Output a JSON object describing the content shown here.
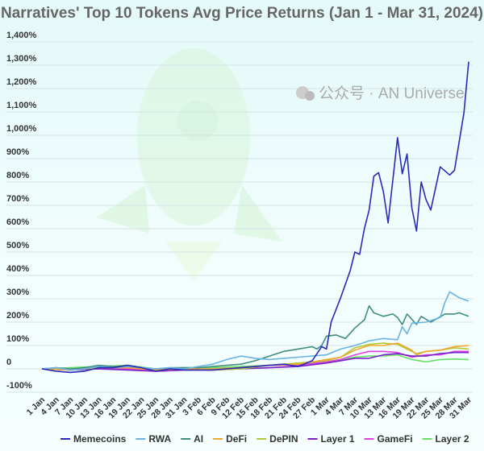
{
  "chart_data": {
    "type": "line",
    "title": "Narratives' Top 10 Tokens Avg Price Returns (Jan 1 - Mar 31, 2024)",
    "xlabel": "",
    "ylabel": "",
    "ylim": [
      -100,
      1400
    ],
    "y_ticks": [
      "-100%",
      "0",
      "100%",
      "200%",
      "300%",
      "400%",
      "500%",
      "600%",
      "700%",
      "800%",
      "900%",
      "1,000%",
      "1,100%",
      "1,200%",
      "1,300%",
      "1,400%"
    ],
    "y_tick_values": [
      -100,
      0,
      100,
      200,
      300,
      400,
      500,
      600,
      700,
      800,
      900,
      1000,
      1100,
      1200,
      1300,
      1400
    ],
    "x_range": [
      "2024-01-01",
      "2024-03-31"
    ],
    "x_ticks": [
      "1 Jan",
      "4 Jan",
      "7 Jan",
      "10 Jan",
      "13 Jan",
      "16 Jan",
      "19 Jan",
      "22 Jan",
      "25 Jan",
      "28 Jan",
      "31 Jan",
      "3 Feb",
      "6 Feb",
      "9 Feb",
      "12 Feb",
      "15 Feb",
      "18 Feb",
      "21 Feb",
      "24 Feb",
      "27 Feb",
      "1 Mar",
      "4 Mar",
      "7 Mar",
      "10 Mar",
      "13 Mar",
      "16 Mar",
      "19 Mar",
      "22 Mar",
      "25 Mar",
      "28 Mar",
      "31 Mar"
    ],
    "grid": true,
    "legend_position": "bottom",
    "series": [
      {
        "name": "Memecoins",
        "color": "#2a2ab8",
        "points": [
          [
            "2024-01-01",
            0
          ],
          [
            "2024-01-04",
            -10
          ],
          [
            "2024-01-07",
            -15
          ],
          [
            "2024-01-10",
            -10
          ],
          [
            "2024-01-13",
            5
          ],
          [
            "2024-01-16",
            5
          ],
          [
            "2024-01-19",
            15
          ],
          [
            "2024-01-22",
            5
          ],
          [
            "2024-01-25",
            -10
          ],
          [
            "2024-01-28",
            0
          ],
          [
            "2024-01-31",
            -5
          ],
          [
            "2024-02-03",
            -5
          ],
          [
            "2024-02-06",
            -5
          ],
          [
            "2024-02-09",
            0
          ],
          [
            "2024-02-12",
            5
          ],
          [
            "2024-02-15",
            10
          ],
          [
            "2024-02-18",
            15
          ],
          [
            "2024-02-21",
            20
          ],
          [
            "2024-02-24",
            10
          ],
          [
            "2024-02-27",
            35
          ],
          [
            "2024-02-29",
            95
          ],
          [
            "2024-03-01",
            85
          ],
          [
            "2024-03-02",
            200
          ],
          [
            "2024-03-04",
            305
          ],
          [
            "2024-03-06",
            420
          ],
          [
            "2024-03-07",
            500
          ],
          [
            "2024-03-08",
            490
          ],
          [
            "2024-03-09",
            600
          ],
          [
            "2024-03-10",
            680
          ],
          [
            "2024-03-11",
            825
          ],
          [
            "2024-03-12",
            840
          ],
          [
            "2024-03-13",
            760
          ],
          [
            "2024-03-14",
            625
          ],
          [
            "2024-03-16",
            990
          ],
          [
            "2024-03-17",
            835
          ],
          [
            "2024-03-18",
            920
          ],
          [
            "2024-03-19",
            690
          ],
          [
            "2024-03-20",
            590
          ],
          [
            "2024-03-21",
            800
          ],
          [
            "2024-03-22",
            725
          ],
          [
            "2024-03-23",
            680
          ],
          [
            "2024-03-25",
            865
          ],
          [
            "2024-03-27",
            830
          ],
          [
            "2024-03-28",
            850
          ],
          [
            "2024-03-30",
            1095
          ],
          [
            "2024-03-31",
            1315
          ]
        ]
      },
      {
        "name": "RWA",
        "color": "#6ab4e4",
        "points": [
          [
            "2024-01-01",
            0
          ],
          [
            "2024-01-04",
            5
          ],
          [
            "2024-01-07",
            -5
          ],
          [
            "2024-01-10",
            0
          ],
          [
            "2024-01-13",
            10
          ],
          [
            "2024-01-16",
            5
          ],
          [
            "2024-01-19",
            10
          ],
          [
            "2024-01-22",
            5
          ],
          [
            "2024-01-25",
            0
          ],
          [
            "2024-01-28",
            5
          ],
          [
            "2024-01-31",
            0
          ],
          [
            "2024-02-03",
            10
          ],
          [
            "2024-02-06",
            20
          ],
          [
            "2024-02-09",
            40
          ],
          [
            "2024-02-12",
            55
          ],
          [
            "2024-02-15",
            45
          ],
          [
            "2024-02-18",
            40
          ],
          [
            "2024-02-21",
            45
          ],
          [
            "2024-02-24",
            50
          ],
          [
            "2024-02-27",
            55
          ],
          [
            "2024-03-01",
            60
          ],
          [
            "2024-03-04",
            85
          ],
          [
            "2024-03-07",
            100
          ],
          [
            "2024-03-10",
            120
          ],
          [
            "2024-03-13",
            130
          ],
          [
            "2024-03-16",
            125
          ],
          [
            "2024-03-17",
            180
          ],
          [
            "2024-03-18",
            150
          ],
          [
            "2024-03-19",
            195
          ],
          [
            "2024-03-22",
            200
          ],
          [
            "2024-03-25",
            220
          ],
          [
            "2024-03-26",
            285
          ],
          [
            "2024-03-27",
            330
          ],
          [
            "2024-03-29",
            305
          ],
          [
            "2024-03-31",
            290
          ]
        ]
      },
      {
        "name": "AI",
        "color": "#3f8f7e",
        "points": [
          [
            "2024-01-01",
            0
          ],
          [
            "2024-01-04",
            5
          ],
          [
            "2024-01-07",
            0
          ],
          [
            "2024-01-10",
            5
          ],
          [
            "2024-01-13",
            15
          ],
          [
            "2024-01-16",
            10
          ],
          [
            "2024-01-19",
            10
          ],
          [
            "2024-01-22",
            5
          ],
          [
            "2024-01-25",
            0
          ],
          [
            "2024-01-28",
            5
          ],
          [
            "2024-01-31",
            5
          ],
          [
            "2024-02-03",
            5
          ],
          [
            "2024-02-06",
            10
          ],
          [
            "2024-02-09",
            15
          ],
          [
            "2024-02-12",
            20
          ],
          [
            "2024-02-15",
            35
          ],
          [
            "2024-02-18",
            55
          ],
          [
            "2024-02-21",
            75
          ],
          [
            "2024-02-24",
            85
          ],
          [
            "2024-02-27",
            95
          ],
          [
            "2024-02-28",
            85
          ],
          [
            "2024-02-29",
            100
          ],
          [
            "2024-03-01",
            140
          ],
          [
            "2024-03-03",
            145
          ],
          [
            "2024-03-05",
            130
          ],
          [
            "2024-03-07",
            175
          ],
          [
            "2024-03-09",
            210
          ],
          [
            "2024-03-10",
            270
          ],
          [
            "2024-03-11",
            240
          ],
          [
            "2024-03-13",
            225
          ],
          [
            "2024-03-15",
            235
          ],
          [
            "2024-03-16",
            220
          ],
          [
            "2024-03-17",
            190
          ],
          [
            "2024-03-18",
            235
          ],
          [
            "2024-03-20",
            190
          ],
          [
            "2024-03-21",
            225
          ],
          [
            "2024-03-23",
            200
          ],
          [
            "2024-03-26",
            235
          ],
          [
            "2024-03-28",
            235
          ],
          [
            "2024-03-29",
            240
          ],
          [
            "2024-03-31",
            225
          ]
        ]
      },
      {
        "name": "DeFi",
        "color": "#f0a830",
        "points": [
          [
            "2024-01-01",
            0
          ],
          [
            "2024-01-07",
            -5
          ],
          [
            "2024-01-13",
            5
          ],
          [
            "2024-01-19",
            5
          ],
          [
            "2024-01-25",
            -5
          ],
          [
            "2024-01-31",
            0
          ],
          [
            "2024-02-06",
            0
          ],
          [
            "2024-02-12",
            5
          ],
          [
            "2024-02-18",
            15
          ],
          [
            "2024-02-24",
            20
          ],
          [
            "2024-03-01",
            40
          ],
          [
            "2024-03-04",
            50
          ],
          [
            "2024-03-07",
            80
          ],
          [
            "2024-03-10",
            100
          ],
          [
            "2024-03-13",
            100
          ],
          [
            "2024-03-16",
            110
          ],
          [
            "2024-03-19",
            80
          ],
          [
            "2024-03-20",
            60
          ],
          [
            "2024-03-22",
            75
          ],
          [
            "2024-03-25",
            80
          ],
          [
            "2024-03-28",
            95
          ],
          [
            "2024-03-31",
            100
          ]
        ]
      },
      {
        "name": "DePIN",
        "color": "#b5c832",
        "points": [
          [
            "2024-01-01",
            0
          ],
          [
            "2024-01-07",
            0
          ],
          [
            "2024-01-13",
            10
          ],
          [
            "2024-01-19",
            10
          ],
          [
            "2024-01-25",
            -5
          ],
          [
            "2024-01-31",
            0
          ],
          [
            "2024-02-06",
            -5
          ],
          [
            "2024-02-12",
            0
          ],
          [
            "2024-02-18",
            15
          ],
          [
            "2024-02-24",
            25
          ],
          [
            "2024-03-01",
            35
          ],
          [
            "2024-03-04",
            50
          ],
          [
            "2024-03-07",
            90
          ],
          [
            "2024-03-10",
            105
          ],
          [
            "2024-03-13",
            110
          ],
          [
            "2024-03-16",
            105
          ],
          [
            "2024-03-19",
            75
          ],
          [
            "2024-03-20",
            65
          ],
          [
            "2024-03-22",
            75
          ],
          [
            "2024-03-25",
            80
          ],
          [
            "2024-03-28",
            90
          ],
          [
            "2024-03-31",
            85
          ]
        ]
      },
      {
        "name": "Layer 1",
        "color": "#7a22c8",
        "points": [
          [
            "2024-01-01",
            0
          ],
          [
            "2024-01-07",
            -5
          ],
          [
            "2024-01-13",
            0
          ],
          [
            "2024-01-19",
            -5
          ],
          [
            "2024-01-25",
            -10
          ],
          [
            "2024-01-31",
            -5
          ],
          [
            "2024-02-06",
            -5
          ],
          [
            "2024-02-12",
            0
          ],
          [
            "2024-02-18",
            5
          ],
          [
            "2024-02-24",
            10
          ],
          [
            "2024-03-01",
            25
          ],
          [
            "2024-03-04",
            35
          ],
          [
            "2024-03-07",
            45
          ],
          [
            "2024-03-10",
            45
          ],
          [
            "2024-03-13",
            60
          ],
          [
            "2024-03-16",
            65
          ],
          [
            "2024-03-19",
            55
          ],
          [
            "2024-03-22",
            55
          ],
          [
            "2024-03-25",
            65
          ],
          [
            "2024-03-28",
            70
          ],
          [
            "2024-03-31",
            70
          ]
        ]
      },
      {
        "name": "GameFi",
        "color": "#e040e0",
        "points": [
          [
            "2024-01-01",
            0
          ],
          [
            "2024-01-07",
            -5
          ],
          [
            "2024-01-13",
            0
          ],
          [
            "2024-01-19",
            0
          ],
          [
            "2024-01-25",
            -10
          ],
          [
            "2024-01-31",
            -5
          ],
          [
            "2024-02-06",
            0
          ],
          [
            "2024-02-12",
            5
          ],
          [
            "2024-02-18",
            15
          ],
          [
            "2024-02-24",
            15
          ],
          [
            "2024-03-01",
            30
          ],
          [
            "2024-03-04",
            40
          ],
          [
            "2024-03-07",
            60
          ],
          [
            "2024-03-10",
            75
          ],
          [
            "2024-03-13",
            75
          ],
          [
            "2024-03-16",
            70
          ],
          [
            "2024-03-19",
            50
          ],
          [
            "2024-03-22",
            60
          ],
          [
            "2024-03-25",
            60
          ],
          [
            "2024-03-28",
            75
          ],
          [
            "2024-03-31",
            75
          ]
        ]
      },
      {
        "name": "Layer 2",
        "color": "#66e066",
        "points": [
          [
            "2024-01-01",
            0
          ],
          [
            "2024-01-07",
            5
          ],
          [
            "2024-01-13",
            10
          ],
          [
            "2024-01-19",
            15
          ],
          [
            "2024-01-25",
            0
          ],
          [
            "2024-01-31",
            5
          ],
          [
            "2024-02-06",
            5
          ],
          [
            "2024-02-12",
            10
          ],
          [
            "2024-02-18",
            15
          ],
          [
            "2024-02-24",
            20
          ],
          [
            "2024-03-01",
            30
          ],
          [
            "2024-03-04",
            40
          ],
          [
            "2024-03-07",
            50
          ],
          [
            "2024-03-10",
            55
          ],
          [
            "2024-03-13",
            55
          ],
          [
            "2024-03-16",
            60
          ],
          [
            "2024-03-19",
            40
          ],
          [
            "2024-03-22",
            30
          ],
          [
            "2024-03-25",
            40
          ],
          [
            "2024-03-28",
            42
          ],
          [
            "2024-03-31",
            40
          ]
        ]
      }
    ]
  },
  "watermark": "公众号 · AN Universe"
}
